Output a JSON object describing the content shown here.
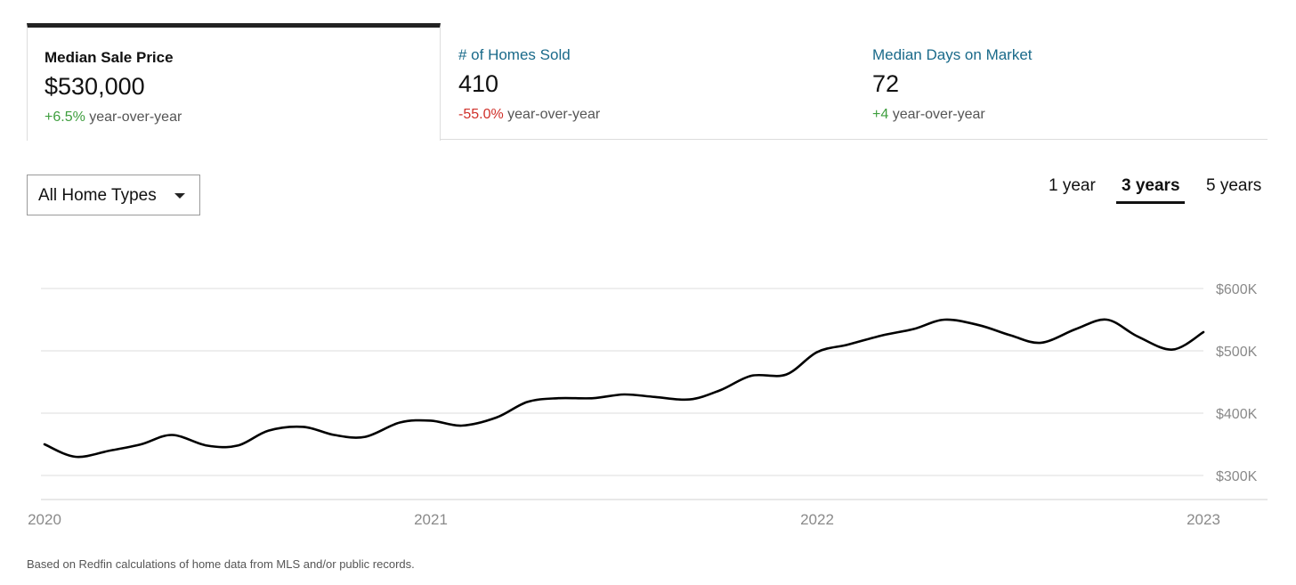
{
  "tabs": [
    {
      "title": "Median Sale Price",
      "value": "$530,000",
      "change": "+6.5%",
      "change_suffix": " year-over-year"
    },
    {
      "title": "# of Homes Sold",
      "value": "410",
      "change": "-55.0%",
      "change_suffix": " year-over-year"
    },
    {
      "title": "Median Days on Market",
      "value": "72",
      "change": "+4",
      "change_suffix": " year-over-year"
    }
  ],
  "filter": {
    "selected": "All Home Types"
  },
  "ranges": {
    "one_year": "1 year",
    "three_years": "3 years",
    "five_years": "5 years",
    "selected": "3 years"
  },
  "colors": {
    "positive": "#3e9e3e",
    "negative": "#d0302a",
    "link": "#1a6a8a",
    "line": "#000000"
  },
  "icons": {
    "dropdown": "caret-down-icon"
  },
  "footnote": "Based on Redfin calculations of home data from MLS and/or public records.",
  "chart_data": {
    "type": "line",
    "title": "",
    "xlabel": "",
    "ylabel": "",
    "xlim": [
      2020.0,
      2023.0
    ],
    "ylim": [
      265000,
      620000
    ],
    "x_ticks": [
      2020,
      2021,
      2022,
      2023
    ],
    "x_tick_labels": [
      "2020",
      "2021",
      "2022",
      "2023"
    ],
    "y_ticks": [
      300000,
      400000,
      500000,
      600000
    ],
    "y_tick_labels": [
      "$300K",
      "$400K",
      "$500K",
      "$600K"
    ],
    "grid": true,
    "legend": "none",
    "series": [
      {
        "x": [
          2020.0,
          2020.08,
          2020.17,
          2020.25,
          2020.33,
          2020.42,
          2020.5,
          2020.58,
          2020.67,
          2020.75,
          2020.83,
          2020.92,
          2021.0,
          2021.08,
          2021.17,
          2021.25,
          2021.33,
          2021.42,
          2021.5,
          2021.58,
          2021.67,
          2021.75,
          2021.83,
          2021.92,
          2022.0,
          2022.08,
          2022.17,
          2022.25,
          2022.33,
          2022.42,
          2022.5,
          2022.58,
          2022.67,
          2022.75,
          2022.83,
          2022.92,
          2023.0
        ],
        "values": [
          350000,
          330000,
          340000,
          350000,
          365000,
          348000,
          348000,
          372000,
          378000,
          365000,
          362000,
          385000,
          388000,
          380000,
          393000,
          418000,
          424000,
          424000,
          430000,
          426000,
          422000,
          437000,
          460000,
          462000,
          498000,
          510000,
          525000,
          535000,
          550000,
          541000,
          525000,
          513000,
          535000,
          550000,
          523000,
          502000,
          530000
        ]
      }
    ]
  }
}
